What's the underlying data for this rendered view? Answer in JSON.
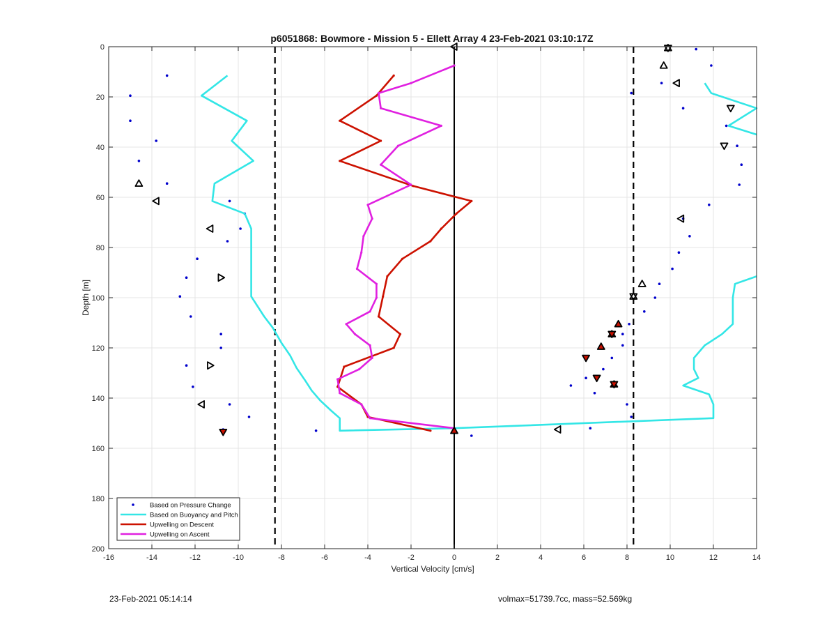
{
  "figure_footer": {
    "timestamp": "23-Feb-2021 05:14:14",
    "vehicle_stats": "volmax=51739.7cc, mass=52.569kg"
  },
  "chart_data": {
    "type": "line",
    "title": "p6051868: Bowmore - Mission 5 - Ellett Array 4 23-Feb-2021 03:10:17Z",
    "xlabel": "Vertical Velocity [cm/s]",
    "ylabel": "Depth [m]",
    "xlim": [
      -16,
      14
    ],
    "ylim": [
      0,
      200
    ],
    "y_reversed": true,
    "grid": true,
    "xticks": [
      -16,
      -14,
      -12,
      -10,
      -8,
      -6,
      -4,
      -2,
      0,
      2,
      4,
      6,
      8,
      10,
      12,
      14
    ],
    "yticks": [
      0,
      20,
      40,
      60,
      80,
      100,
      120,
      140,
      160,
      180,
      200
    ],
    "legend_position": "bottom-left",
    "legend": [
      "Based on Pressure Change",
      "Based on Buoyancy and Pitch",
      "Upwelling on Descent",
      "Upwelling on Ascent"
    ],
    "colors": {
      "pressure": "#0000cc",
      "buoyancy": "#33e6e6",
      "descent": "#cc1100",
      "ascent": "#e020e0",
      "guide": "#000000",
      "marker": "#000000",
      "marker_fill": "#cc1100"
    },
    "vertical_lines": [
      {
        "x": -8.3,
        "style": "dashed"
      },
      {
        "x": 8.3,
        "style": "dashed"
      },
      {
        "x": 0,
        "style": "solid"
      }
    ],
    "series": [
      {
        "name": "Based on Pressure Change",
        "style": "points",
        "points": [
          [
            -13.3,
            11.5
          ],
          [
            -15.0,
            19.5
          ],
          [
            -15.0,
            29.5
          ],
          [
            -13.8,
            37.5
          ],
          [
            -14.6,
            45.5
          ],
          [
            -13.3,
            54.5
          ],
          [
            -10.4,
            61.5
          ],
          [
            -9.7,
            66.5
          ],
          [
            -9.9,
            72.5
          ],
          [
            -10.5,
            77.5
          ],
          [
            -11.9,
            84.5
          ],
          [
            -12.4,
            92.0
          ],
          [
            -12.7,
            99.5
          ],
          [
            -12.2,
            107.5
          ],
          [
            -10.8,
            114.5
          ],
          [
            -10.8,
            120.0
          ],
          [
            -12.4,
            127.0
          ],
          [
            -12.1,
            135.5
          ],
          [
            -10.4,
            142.5
          ],
          [
            -9.5,
            147.5
          ],
          [
            -10.7,
            152.5
          ],
          [
            -6.4,
            153.0
          ],
          [
            0.8,
            155.0
          ],
          [
            11.2,
            1.0
          ],
          [
            11.9,
            7.5
          ],
          [
            9.6,
            14.5
          ],
          [
            8.2,
            18.5
          ],
          [
            10.6,
            24.5
          ],
          [
            12.6,
            31.5
          ],
          [
            13.1,
            39.5
          ],
          [
            13.3,
            47.0
          ],
          [
            13.2,
            55.0
          ],
          [
            11.8,
            63.0
          ],
          [
            10.6,
            68.5
          ],
          [
            10.9,
            75.5
          ],
          [
            10.4,
            82.0
          ],
          [
            10.1,
            88.5
          ],
          [
            9.5,
            94.5
          ],
          [
            9.3,
            100.0
          ],
          [
            8.8,
            105.5
          ],
          [
            8.1,
            110.5
          ],
          [
            7.8,
            114.5
          ],
          [
            7.8,
            119.0
          ],
          [
            7.3,
            124.0
          ],
          [
            6.9,
            128.5
          ],
          [
            6.1,
            132.0
          ],
          [
            5.4,
            135.0
          ],
          [
            6.5,
            138.0
          ],
          [
            8.0,
            142.5
          ],
          [
            8.2,
            147.5
          ],
          [
            6.3,
            152.0
          ]
        ]
      },
      {
        "name": "Based on Buoyancy and Pitch",
        "style": "line",
        "segments": [
          [
            [
              -10.5,
              11.5
            ],
            [
              -11.7,
              19.5
            ],
            [
              -9.6,
              29.5
            ],
            [
              -10.3,
              37.5
            ],
            [
              -9.3,
              45.5
            ],
            [
              -11.1,
              54.5
            ],
            [
              -11.2,
              61.5
            ],
            [
              -9.7,
              66.5
            ],
            [
              -9.4,
              72.5
            ],
            [
              -9.4,
              77.5
            ],
            [
              -9.4,
              84.5
            ],
            [
              -9.4,
              92.0
            ],
            [
              -9.4,
              99.5
            ],
            [
              -8.8,
              107.5
            ],
            [
              -8.4,
              112.0
            ],
            [
              -8.0,
              118.0
            ],
            [
              -7.6,
              123.0
            ],
            [
              -7.3,
              128.0
            ],
            [
              -6.9,
              133.0
            ],
            [
              -6.6,
              137.0
            ],
            [
              -6.2,
              141.0
            ],
            [
              -5.7,
              145.0
            ],
            [
              -5.3,
              148.0
            ],
            [
              -5.3,
              153.0
            ],
            [
              0.0,
              152.0
            ],
            [
              12.0,
              148.0
            ],
            [
              12.0,
              142.5
            ],
            [
              11.8,
              138.5
            ],
            [
              10.6,
              135.0
            ],
            [
              11.3,
              132.0
            ],
            [
              11.1,
              128.5
            ],
            [
              11.1,
              124.0
            ],
            [
              11.6,
              119.0
            ],
            [
              12.4,
              114.5
            ],
            [
              12.9,
              110.5
            ],
            [
              12.9,
              105.5
            ],
            [
              12.9,
              100.0
            ],
            [
              13.0,
              94.5
            ],
            [
              14.0,
              91.5
            ]
          ],
          [
            [
              14.0,
              35.0
            ],
            [
              12.7,
              31.5
            ],
            [
              14.0,
              24.5
            ],
            [
              11.9,
              18.5
            ],
            [
              11.6,
              14.5
            ]
          ]
        ]
      },
      {
        "name": "Upwelling on Descent",
        "style": "line",
        "points": [
          [
            -2.8,
            11.5
          ],
          [
            -3.6,
            19.5
          ],
          [
            -5.3,
            29.5
          ],
          [
            -3.4,
            37.5
          ],
          [
            -5.3,
            45.5
          ],
          [
            -1.9,
            55.5
          ],
          [
            0.8,
            61.5
          ],
          [
            0.1,
            66.5
          ],
          [
            -0.6,
            72.5
          ],
          [
            -1.1,
            77.5
          ],
          [
            -2.4,
            84.5
          ],
          [
            -3.1,
            91.5
          ],
          [
            -3.3,
            99.5
          ],
          [
            -3.5,
            107.5
          ],
          [
            -2.5,
            114.5
          ],
          [
            -2.8,
            120.0
          ],
          [
            -5.1,
            127.5
          ],
          [
            -5.4,
            135.5
          ],
          [
            -4.3,
            142.5
          ],
          [
            -4.0,
            147.5
          ],
          [
            -1.1,
            153.0
          ]
        ]
      },
      {
        "name": "Upwelling on Ascent",
        "style": "line",
        "points": [
          [
            0.0,
            7.5
          ],
          [
            -2.0,
            14.5
          ],
          [
            -3.5,
            18.5
          ],
          [
            -3.4,
            24.5
          ],
          [
            -0.6,
            31.5
          ],
          [
            -2.6,
            39.5
          ],
          [
            -3.4,
            47.0
          ],
          [
            -2.0,
            55.0
          ],
          [
            -4.0,
            63.0
          ],
          [
            -3.8,
            68.5
          ],
          [
            -4.2,
            75.5
          ],
          [
            -4.3,
            82.0
          ],
          [
            -4.5,
            88.5
          ],
          [
            -3.6,
            94.5
          ],
          [
            -3.6,
            100.0
          ],
          [
            -3.9,
            105.5
          ],
          [
            -5.0,
            110.5
          ],
          [
            -4.6,
            114.5
          ],
          [
            -3.9,
            119.0
          ],
          [
            -3.8,
            124.0
          ],
          [
            -4.4,
            128.5
          ],
          [
            -5.4,
            132.5
          ],
          [
            -5.3,
            138.0
          ],
          [
            -4.3,
            142.5
          ],
          [
            -3.9,
            148.0
          ],
          [
            0.0,
            152.0
          ]
        ]
      }
    ],
    "markers": [
      {
        "x": -14.6,
        "y": 54.5,
        "dir": "up"
      },
      {
        "x": -13.8,
        "y": 61.5,
        "dir": "left"
      },
      {
        "x": -11.3,
        "y": 72.5,
        "dir": "left"
      },
      {
        "x": -10.8,
        "y": 92.0,
        "dir": "right"
      },
      {
        "x": -11.3,
        "y": 127.0,
        "dir": "right"
      },
      {
        "x": -11.7,
        "y": 142.5,
        "dir": "left"
      },
      {
        "x": -10.7,
        "y": 153.5,
        "dir": "down",
        "filled": true
      },
      {
        "x": 0.0,
        "y": 0.0,
        "dir": "left"
      },
      {
        "x": 9.9,
        "y": 0.5,
        "dir": "up"
      },
      {
        "x": 9.9,
        "y": 0.5,
        "dir": "down"
      },
      {
        "x": 9.7,
        "y": 7.5,
        "dir": "up"
      },
      {
        "x": 10.3,
        "y": 14.5,
        "dir": "left"
      },
      {
        "x": 12.8,
        "y": 24.5,
        "dir": "down"
      },
      {
        "x": 12.5,
        "y": 39.5,
        "dir": "down"
      },
      {
        "x": 10.5,
        "y": 68.5,
        "dir": "left"
      },
      {
        "x": 8.7,
        "y": 94.5,
        "dir": "up"
      },
      {
        "x": 8.3,
        "y": 99.5,
        "dir": "up"
      },
      {
        "x": 8.3,
        "y": 99.5,
        "dir": "down"
      },
      {
        "x": 7.6,
        "y": 110.5,
        "dir": "up",
        "filled": true
      },
      {
        "x": 7.3,
        "y": 114.5,
        "dir": "up",
        "filled": true
      },
      {
        "x": 7.3,
        "y": 114.5,
        "dir": "down",
        "filled": true
      },
      {
        "x": 6.8,
        "y": 119.5,
        "dir": "up",
        "filled": true
      },
      {
        "x": 6.1,
        "y": 124.0,
        "dir": "down",
        "filled": true
      },
      {
        "x": 6.6,
        "y": 132.0,
        "dir": "down",
        "filled": true
      },
      {
        "x": 7.4,
        "y": 134.5,
        "dir": "up",
        "filled": true
      },
      {
        "x": 7.4,
        "y": 134.5,
        "dir": "down",
        "filled": true
      },
      {
        "x": 4.8,
        "y": 152.5,
        "dir": "left"
      },
      {
        "x": 0.0,
        "y": 153.0,
        "dir": "up",
        "filled": true
      }
    ]
  }
}
